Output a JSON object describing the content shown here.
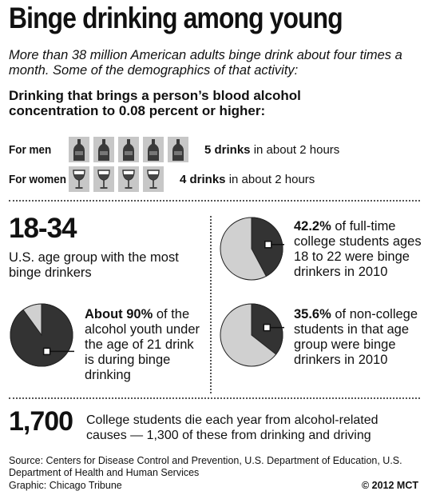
{
  "title": "Binge drinking among young",
  "subtitle": "More than 38 million American adults binge drink about four times a month. Some of the demographics of that activity:",
  "definition": "Drinking that brings a person’s blood alcohol concentration to 0.08 percent or higher:",
  "men": {
    "label": "For men",
    "icon": "bottle-icon",
    "count": 5,
    "drinks": "5 drinks",
    "rest": " in about 2 hours"
  },
  "women": {
    "label": "For women",
    "icon": "wine-glass-icon",
    "count": 4,
    "drinks": "4 drinks",
    "rest": " in about 2 hours"
  },
  "age": {
    "value": "18-34",
    "note": "U.S. age group with the most binge drinkers"
  },
  "stat_youth": {
    "bold": "About 90%",
    "rest": " of the alcohol youth under the age of 21 drink is during binge drinking"
  },
  "stat_college": {
    "bold": "42.2%",
    "rest": " of full-time college students ages 18 to 22 were binge drinkers in 2010"
  },
  "stat_noncollege": {
    "bold": "35.6%",
    "rest": " of non-college students in that age group were binge drinkers in 2010"
  },
  "deaths": {
    "value": "1,700",
    "note": "College students die each year from alcohol-related causes — 1,300 of these from drinking and driving"
  },
  "source": "Source: Centers for Disease Control and Prevention, U.S. Department of Education, U.S. Department of Health and Human Services",
  "credit": "Graphic: Chicago Tribune",
  "copyright": "© 2012 MCT",
  "colors": {
    "dark": "#333333",
    "light": "#d0d0d0",
    "icon_bg": "#c7c7c7"
  },
  "chart_data": {
    "type": "pie",
    "charts": [
      {
        "name": "youth",
        "values": [
          90,
          10
        ]
      },
      {
        "name": "college",
        "values": [
          42.2,
          57.8
        ]
      },
      {
        "name": "noncollege",
        "values": [
          35.6,
          64.4
        ]
      }
    ]
  }
}
